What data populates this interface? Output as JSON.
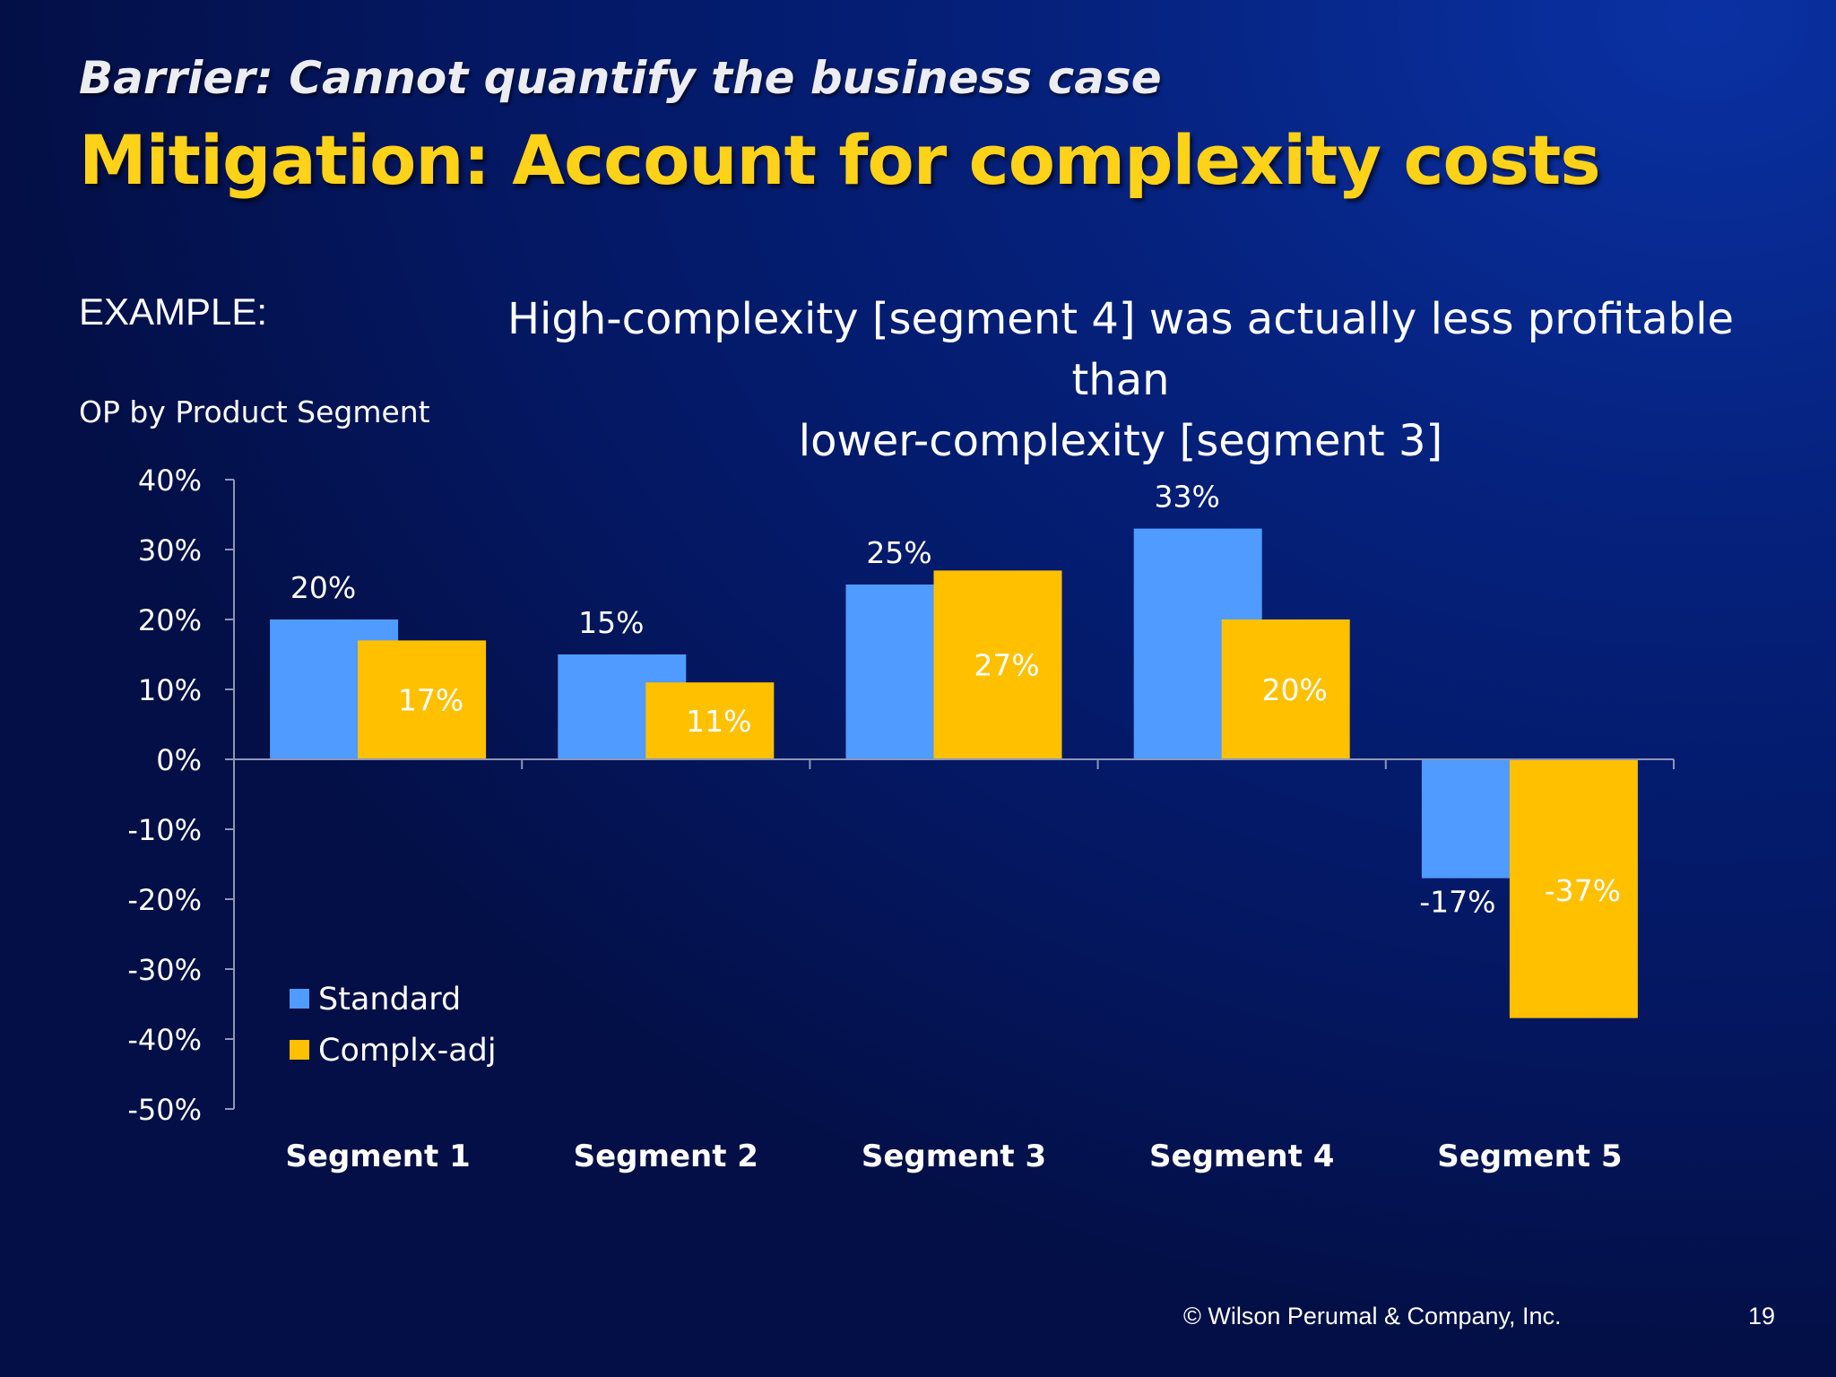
{
  "slide": {
    "subtitle": "Barrier:  Cannot quantify the business case",
    "title": "Mitigation: Account for complexity costs",
    "example_label": "EXAMPLE:",
    "headline_line1": "High-complexity [segment 4] was actually less profitable than",
    "headline_line2": "lower-complexity [segment 3]",
    "chart_label": "OP by Product Segment",
    "footer": "© Wilson Perumal & Company, Inc.",
    "page_number": "19"
  },
  "colors": {
    "standard": "#4f9bff",
    "complx_adj": "#ffc000",
    "title": "#ffd21a"
  },
  "chart_data": {
    "type": "bar",
    "title": "OP by Product Segment",
    "xlabel": "",
    "ylabel": "",
    "categories": [
      "Segment 1",
      "Segment 2",
      "Segment 3",
      "Segment 4",
      "Segment 5"
    ],
    "series": [
      {
        "name": "Standard",
        "values": [
          20,
          15,
          25,
          33,
          -17
        ],
        "labels": [
          "20%",
          "15%",
          "25%",
          "33%",
          "-17%"
        ]
      },
      {
        "name": "Complx-adj",
        "values": [
          17,
          11,
          27,
          20,
          -37
        ],
        "labels": [
          "17%",
          "11%",
          "27%",
          "20%",
          "-37%"
        ]
      }
    ],
    "ylim": [
      -50,
      40
    ],
    "yticks": [
      40,
      30,
      20,
      10,
      0,
      -10,
      -20,
      -30,
      -40,
      -50
    ],
    "ytick_labels": [
      "40%",
      "30%",
      "20%",
      "10%",
      "0%",
      "-10%",
      "-20%",
      "-30%",
      "-40%",
      "-50%"
    ],
    "grid": false,
    "legend": "bottom-left"
  }
}
